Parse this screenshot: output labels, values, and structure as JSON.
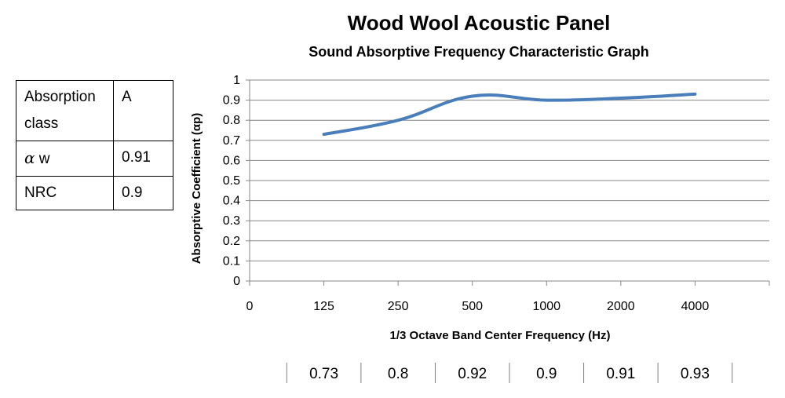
{
  "header": {
    "title": "Wood Wool Acoustic Panel",
    "subtitle": "Sound Absorptive Frequency Characteristic Graph"
  },
  "properties": {
    "rows": [
      {
        "key": "Absorption class",
        "value": "A"
      },
      {
        "key_symbol": "α",
        "key_suffix": "w",
        "value": "0.91"
      },
      {
        "key": "NRC",
        "value": "0.9"
      }
    ]
  },
  "chart_data": {
    "type": "line",
    "title": "Wood Wool Acoustic Panel",
    "subtitle": "Sound Absorptive Frequency Characteristic Graph",
    "xlabel": "1/3 Octave Band Center Frequency (Hz)",
    "ylabel": "Absorptive Coefficient (αp)",
    "x_ticks": [
      "0",
      "125",
      "250",
      "500",
      "1000",
      "2000",
      "4000"
    ],
    "categories": [
      "125",
      "250",
      "500",
      "1000",
      "2000",
      "4000"
    ],
    "values": [
      0.73,
      0.8,
      0.92,
      0.9,
      0.91,
      0.93
    ],
    "value_labels": [
      "0.73",
      "0.8",
      "0.92",
      "0.9",
      "0.91",
      "0.93"
    ],
    "y_ticks": [
      "0",
      "0.1",
      "0.2",
      "0.3",
      "0.4",
      "0.5",
      "0.6",
      "0.7",
      "0.8",
      "0.9",
      "1"
    ],
    "ylim": [
      0,
      1
    ],
    "grid": "horizontal",
    "line_color": "#4a7ebb",
    "grid_color": "#878787"
  }
}
